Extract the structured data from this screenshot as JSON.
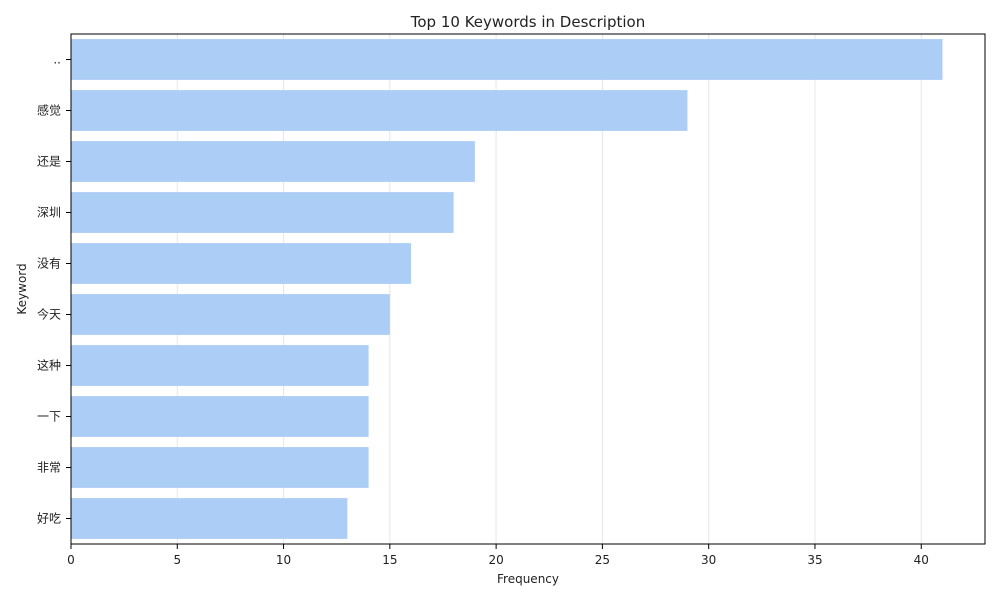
{
  "chart_data": {
    "type": "bar",
    "orientation": "horizontal",
    "title": "Top 10 Keywords in Description",
    "xlabel": "Frequency",
    "ylabel": "Keyword",
    "categories": [
      "..",
      "感觉",
      "还是",
      "深圳",
      "没有",
      "今天",
      "这种",
      "一下",
      "非常",
      "好吃"
    ],
    "values": [
      41,
      29,
      19,
      18,
      16,
      15,
      14,
      14,
      14,
      13
    ],
    "xlim": [
      0,
      43
    ],
    "xticks": [
      0,
      5,
      10,
      15,
      20,
      25,
      30,
      35,
      40
    ],
    "grid": "vertical",
    "legend": "none",
    "colors": {
      "bar": "#abcdf6",
      "grid": "#e6e6e6",
      "axis": "#000000",
      "text": "#222222"
    }
  }
}
